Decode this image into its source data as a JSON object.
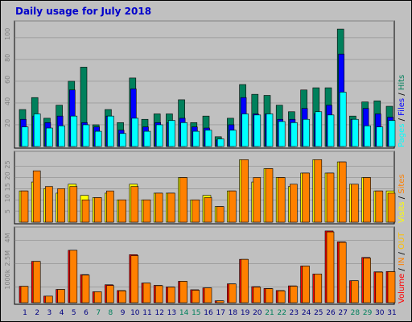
{
  "title": "Daily usage for July 2018",
  "colors": {
    "hits": "#00805c",
    "files": "#0000ff",
    "pages": "#00ffff",
    "visits": "#ffff00",
    "sites": "#ff8000",
    "kbin": "#ff8000",
    "kbout": "#ffc000",
    "volume": "#ff0000",
    "weekend_day": "#00805c",
    "weekday": "#000080",
    "panel_bg": "#c0c0c0"
  },
  "right_labels": {
    "top": [
      {
        "text": "Pages",
        "color": "#00ffff"
      },
      {
        "text": " / ",
        "color": "#000000"
      },
      {
        "text": "Files",
        "color": "#0000ff"
      },
      {
        "text": " / ",
        "color": "#000000"
      },
      {
        "text": "Hits",
        "color": "#00805c"
      }
    ],
    "middle": [
      {
        "text": "Visits",
        "color": "#ffff00"
      },
      {
        "text": " / ",
        "color": "#000000"
      },
      {
        "text": "Sites",
        "color": "#ff8000"
      }
    ],
    "bottom": [
      {
        "text": "Volume",
        "color": "#ff0000"
      },
      {
        "text": " / ",
        "color": "#000000"
      },
      {
        "text": "IN",
        "color": "#ff8000"
      },
      {
        "text": " / ",
        "color": "#000000"
      },
      {
        "text": "OUT",
        "color": "#ffc000"
      }
    ]
  },
  "chart_data": [
    {
      "type": "bar",
      "name": "hits-files-pages",
      "categories": [
        "1",
        "2",
        "3",
        "4",
        "5",
        "6",
        "7",
        "8",
        "9",
        "10",
        "11",
        "12",
        "13",
        "14",
        "15",
        "16",
        "17",
        "18",
        "19",
        "20",
        "21",
        "22",
        "23",
        "24",
        "25",
        "26",
        "27",
        "28",
        "29",
        "30",
        "31"
      ],
      "weekend": [
        false,
        false,
        false,
        false,
        false,
        false,
        true,
        true,
        false,
        false,
        false,
        false,
        false,
        true,
        true,
        false,
        false,
        false,
        false,
        false,
        true,
        true,
        false,
        false,
        false,
        false,
        false,
        true,
        true,
        false,
        false
      ],
      "yticks": [
        20,
        40,
        60,
        80,
        100
      ],
      "ylim": [
        0,
        114
      ],
      "series": [
        {
          "name": "Hits",
          "values": [
            34,
            45,
            26,
            38,
            60,
            73,
            20,
            34,
            22,
            63,
            25,
            30,
            30,
            43,
            22,
            28,
            9,
            26,
            57,
            48,
            47,
            38,
            32,
            52,
            54,
            54,
            108,
            28,
            41,
            42,
            37
          ]
        },
        {
          "name": "Files",
          "values": [
            25,
            28,
            22,
            28,
            52,
            22,
            18,
            28,
            15,
            53,
            18,
            22,
            22,
            26,
            18,
            17,
            6,
            20,
            45,
            30,
            30,
            25,
            25,
            35,
            30,
            38,
            85,
            25,
            35,
            30,
            27
          ]
        },
        {
          "name": "Pages",
          "values": [
            18,
            30,
            17,
            19,
            28,
            20,
            14,
            28,
            12,
            26,
            14,
            20,
            24,
            22,
            14,
            15,
            7,
            15,
            30,
            29,
            30,
            23,
            22,
            25,
            32,
            29,
            50,
            25,
            19,
            18,
            24
          ]
        }
      ]
    },
    {
      "type": "bar",
      "name": "visits-sites",
      "categories": [
        "1",
        "2",
        "3",
        "4",
        "5",
        "6",
        "7",
        "8",
        "9",
        "10",
        "11",
        "12",
        "13",
        "14",
        "15",
        "16",
        "17",
        "18",
        "19",
        "20",
        "21",
        "22",
        "23",
        "24",
        "25",
        "26",
        "27",
        "28",
        "29",
        "30",
        "31"
      ],
      "yticks": [
        5,
        10,
        15,
        20,
        25
      ],
      "ylim": [
        0,
        31
      ],
      "series": [
        {
          "name": "Visits",
          "values": [
            14,
            18,
            15,
            13,
            17,
            12,
            11,
            13,
            10,
            17,
            10,
            13,
            13,
            20,
            10,
            12,
            7,
            14,
            28,
            18,
            24,
            20,
            16,
            22,
            28,
            22,
            27,
            17,
            20,
            14,
            14
          ]
        },
        {
          "name": "Sites",
          "values": [
            14,
            23,
            16,
            15,
            16,
            10,
            11,
            14,
            10,
            16,
            10,
            13,
            13,
            20,
            10,
            11,
            7,
            14,
            28,
            20,
            24,
            20,
            17,
            22,
            28,
            22,
            27,
            17,
            20,
            14,
            13
          ]
        }
      ]
    },
    {
      "type": "bar",
      "name": "volume",
      "categories": [
        "1",
        "2",
        "3",
        "4",
        "5",
        "6",
        "7",
        "8",
        "9",
        "10",
        "11",
        "12",
        "13",
        "14",
        "15",
        "16",
        "17",
        "18",
        "19",
        "20",
        "21",
        "22",
        "23",
        "24",
        "25",
        "26",
        "27",
        "28",
        "29",
        "30",
        "31"
      ],
      "yticks": [
        1000,
        2500,
        4000
      ],
      "ytick_labels": [
        "1000k",
        "2.5M",
        "4M"
      ],
      "ylim": [
        0,
        4750
      ],
      "series": [
        {
          "name": "Volume",
          "values": [
            1050,
            2650,
            420,
            850,
            3360,
            1800,
            700,
            1150,
            780,
            3080,
            1260,
            1110,
            1010,
            1370,
            830,
            950,
            120,
            1210,
            2780,
            1030,
            910,
            780,
            1080,
            2350,
            1840,
            4600,
            3900,
            1410,
            2900,
            1980,
            2000
          ]
        },
        {
          "name": "IN",
          "values": [
            1050,
            2650,
            420,
            850,
            3360,
            1770,
            700,
            1100,
            760,
            3020,
            1260,
            1090,
            1000,
            1370,
            800,
            950,
            120,
            1200,
            2780,
            1000,
            900,
            760,
            1060,
            2350,
            1840,
            4540,
            3870,
            1410,
            2860,
            1960,
            1990
          ]
        }
      ]
    }
  ]
}
